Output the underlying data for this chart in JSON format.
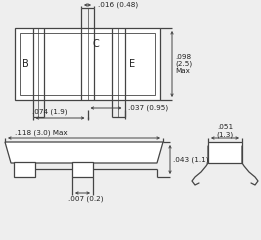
{
  "bg_color": "#eeeeee",
  "line_color": "#444444",
  "text_color": "#222222",
  "annotations": {
    "top_width": ".016 (0.48)",
    "right_height": ".098\n(2.5)\nMax",
    "dim_037": ".037 (0.95)",
    "dim_074": ".074 (1.9)",
    "dim_118": ".118 (3.0) Max",
    "dim_043": ".043 (1.1)",
    "dim_007": ".007 (0.2)",
    "dim_051": ".051\n(1.3)",
    "label_B": "B",
    "label_C": "C",
    "label_E": "E"
  }
}
